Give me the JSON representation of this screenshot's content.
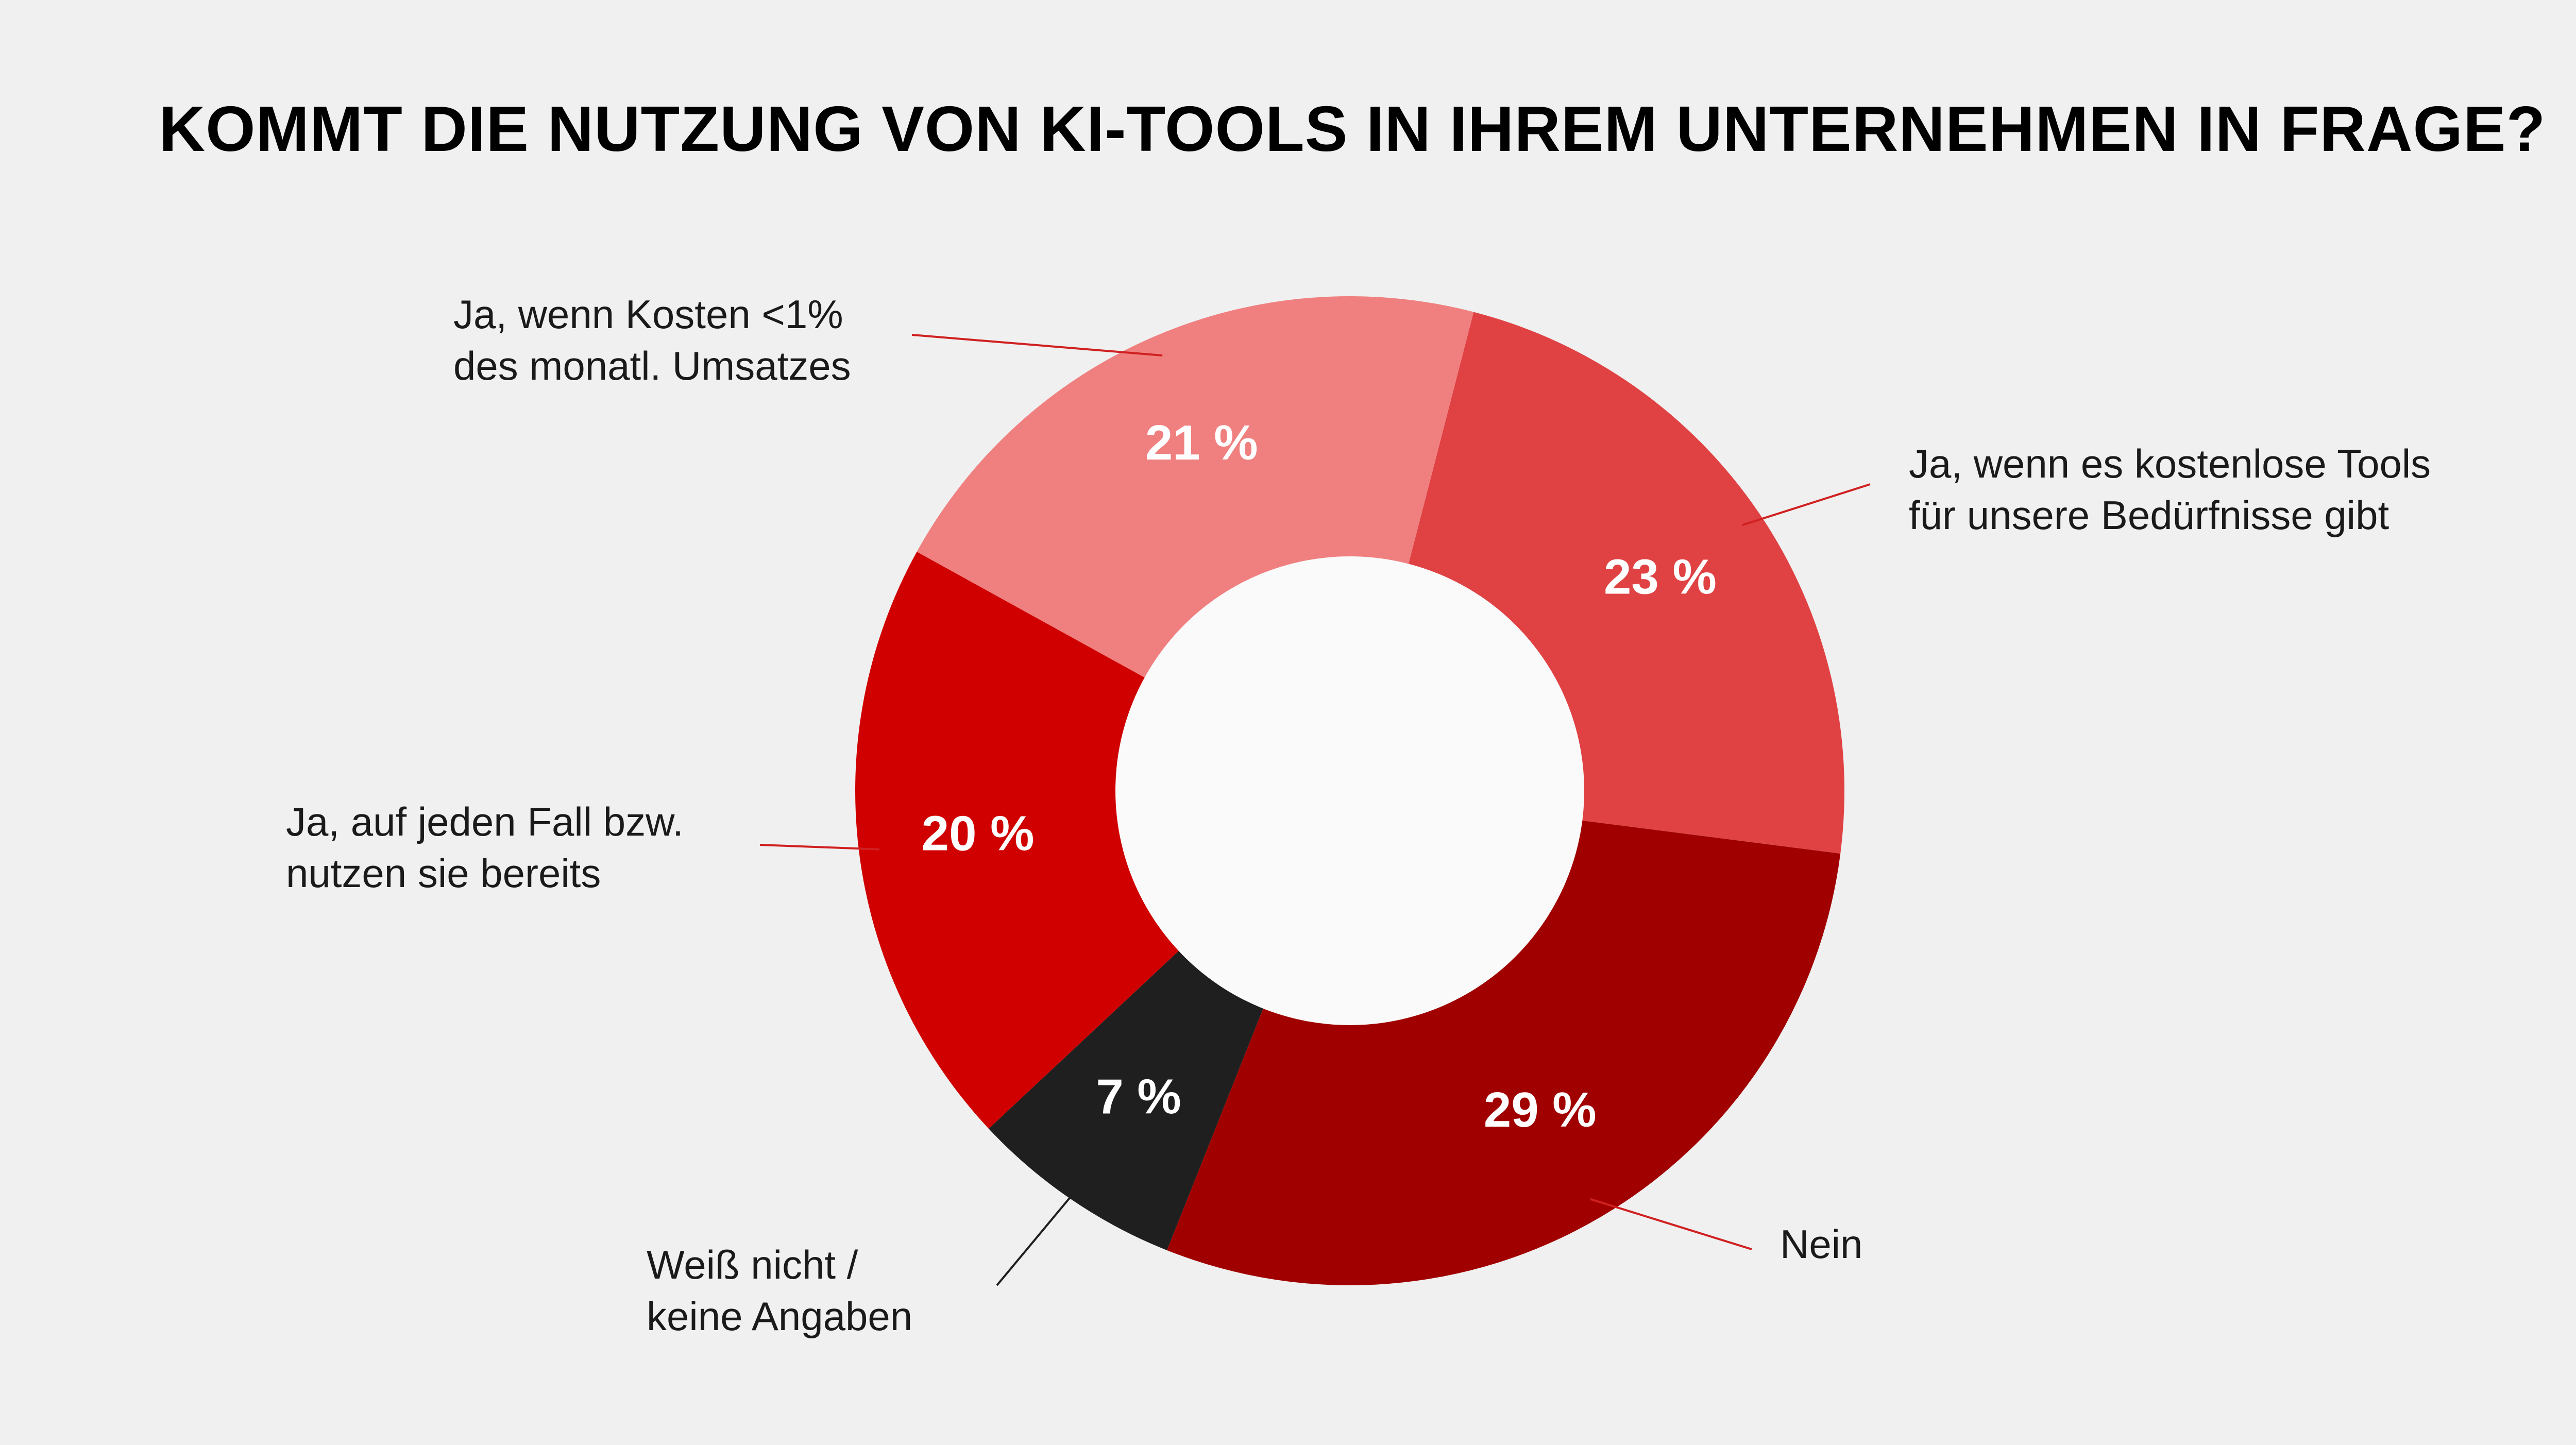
{
  "chart_data": {
    "type": "pie",
    "variant": "donut",
    "title": "KOMMT DIE NUTZUNG VON KI-TOOLS IN IHREM UNTERNEHMEN IN FRAGE?",
    "slices": [
      {
        "id": "kostenlos",
        "label_lines": [
          "Ja, wenn es kostenlose Tools",
          "für unsere Bedürfnisse gibt"
        ],
        "value": 23,
        "value_label": "23 %",
        "color": "#e04244",
        "text_color": "#ffffff"
      },
      {
        "id": "nein",
        "label_lines": [
          "Nein"
        ],
        "value": 29,
        "value_label": "29 %",
        "color": "#a00000",
        "text_color": "#ffffff"
      },
      {
        "id": "weiss-nicht",
        "label_lines": [
          "Weiß nicht /",
          "keine Angaben"
        ],
        "value": 7,
        "value_label": "7 %",
        "color": "#1f1f1f",
        "text_color": "#ffffff"
      },
      {
        "id": "auf-jeden-fall",
        "label_lines": [
          "Ja, auf jeden Fall bzw.",
          "nutzen sie bereits"
        ],
        "value": 20,
        "value_label": "20 %",
        "color": "#d00000",
        "text_color": "#ffffff"
      },
      {
        "id": "kosten-1",
        "label_lines": [
          "Ja, wenn Kosten <1%",
          "des monatl. Umsatzes"
        ],
        "value": 21,
        "value_label": "21 %",
        "color": "#f08080",
        "text_color": "#ffffff"
      }
    ],
    "background": "#f0f0f0",
    "hole_color": "#fafafa",
    "leader_color": "#d02020",
    "leader_color_dark": "#1f1f1f"
  }
}
